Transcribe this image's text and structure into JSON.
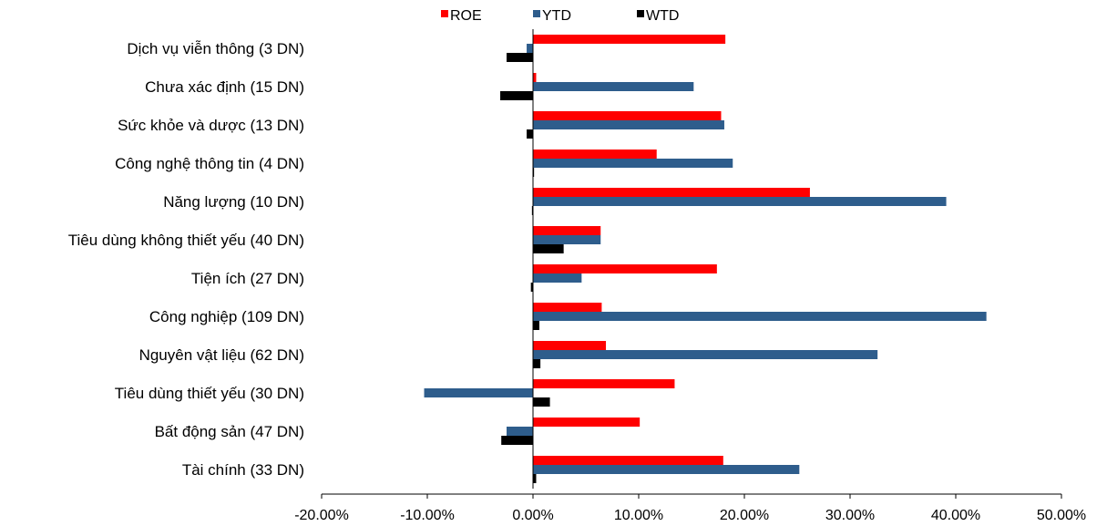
{
  "chart_data": {
    "type": "bar",
    "orientation": "horizontal",
    "title": "",
    "xlabel": "",
    "ylabel": "",
    "xlim": [
      -20,
      50
    ],
    "x_ticks": [
      "-20.00%",
      "-10.00%",
      "0.00%",
      "10.00%",
      "20.00%",
      "30.00%",
      "40.00%",
      "50.00%"
    ],
    "grid": false,
    "legend_position": "top-center",
    "categories": [
      "Dịch vụ viễn thông (3 DN)",
      "Chưa xác định (15 DN)",
      "Sức khỏe và dược (13 DN)",
      "Công nghệ thông tin (4 DN)",
      "Năng lượng (10 DN)",
      "Tiêu dùng không thiết yếu (40 DN)",
      "Tiện ích (27 DN)",
      "Công nghiệp (109 DN)",
      "Nguyên vật liệu (62 DN)",
      "Tiêu dùng thiết yếu (30 DN)",
      "Bất động sản (47 DN)",
      "Tài chính (33 DN)"
    ],
    "series": [
      {
        "name": "ROE",
        "color": "#ff0000",
        "values": [
          18.2,
          0.3,
          17.8,
          11.7,
          26.2,
          6.4,
          17.4,
          6.5,
          6.9,
          13.4,
          10.1,
          18.0
        ]
      },
      {
        "name": "YTD",
        "color": "#2e5d8c",
        "values": [
          -0.6,
          15.2,
          18.1,
          18.9,
          39.1,
          6.4,
          4.6,
          42.9,
          32.6,
          -10.3,
          -2.5,
          25.2
        ]
      },
      {
        "name": "WTD",
        "color": "#000000",
        "values": [
          -2.5,
          -3.1,
          -0.6,
          0.1,
          -0.1,
          2.9,
          -0.2,
          0.6,
          0.7,
          1.6,
          -3.0,
          0.3
        ]
      }
    ]
  }
}
